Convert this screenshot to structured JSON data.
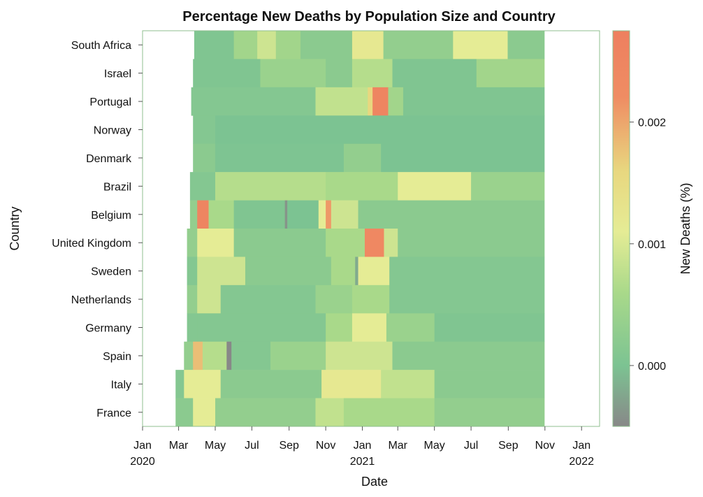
{
  "chart_data": {
    "type": "heatmap",
    "title": "Percentage New Deaths by Population Size and Country",
    "xlabel": "Date",
    "ylabel": "Country",
    "colorbar_label": "New Deaths (%)",
    "x_range": [
      "2020-01-01",
      "2022-01-31"
    ],
    "x_ticks": [
      {
        "date": "2020-01-01",
        "label": "Jan",
        "sublabel": "2020"
      },
      {
        "date": "2020-03-01",
        "label": "Mar",
        "sublabel": ""
      },
      {
        "date": "2020-05-01",
        "label": "May",
        "sublabel": ""
      },
      {
        "date": "2020-07-01",
        "label": "Jul",
        "sublabel": ""
      },
      {
        "date": "2020-09-01",
        "label": "Sep",
        "sublabel": ""
      },
      {
        "date": "2020-11-01",
        "label": "Nov",
        "sublabel": ""
      },
      {
        "date": "2021-01-01",
        "label": "Jan",
        "sublabel": "2021"
      },
      {
        "date": "2021-03-01",
        "label": "Mar",
        "sublabel": ""
      },
      {
        "date": "2021-05-01",
        "label": "May",
        "sublabel": ""
      },
      {
        "date": "2021-07-01",
        "label": "Jul",
        "sublabel": ""
      },
      {
        "date": "2021-09-01",
        "label": "Sep",
        "sublabel": ""
      },
      {
        "date": "2021-11-01",
        "label": "Nov",
        "sublabel": ""
      },
      {
        "date": "2022-01-01",
        "label": "Jan",
        "sublabel": "2022"
      }
    ],
    "color_range": [
      -0.0005,
      0.00275
    ],
    "color_ticks": [
      0.0,
      0.001,
      0.002
    ],
    "color_tick_labels": [
      "0.000",
      "0.001",
      "0.002"
    ],
    "colorscale": [
      [
        -0.0005,
        "#888888"
      ],
      [
        0.0,
        "#7cc392"
      ],
      [
        0.0006,
        "#a9d98a"
      ],
      [
        0.0011,
        "#e5ec95"
      ],
      [
        0.0016,
        "#e8d77f"
      ],
      [
        0.0022,
        "#ef8d63"
      ],
      [
        0.00275,
        "#ee7f5f"
      ]
    ],
    "countries": [
      "South Africa",
      "Israel",
      "Portugal",
      "Norway",
      "Denmark",
      "Brazil",
      "Belgium",
      "United Kingdom",
      "Sweden",
      "Netherlands",
      "Germany",
      "Spain",
      "Italy",
      "France"
    ],
    "rows": [
      {
        "country": "South Africa",
        "segments": [
          {
            "start": "2020-03-27",
            "end": "2020-06-01",
            "value": 5e-05
          },
          {
            "start": "2020-06-01",
            "end": "2020-07-10",
            "value": 0.0005
          },
          {
            "start": "2020-07-10",
            "end": "2020-08-10",
            "value": 0.0009
          },
          {
            "start": "2020-08-10",
            "end": "2020-09-20",
            "value": 0.0005
          },
          {
            "start": "2020-09-20",
            "end": "2020-12-15",
            "value": 0.0002
          },
          {
            "start": "2020-12-15",
            "end": "2021-02-05",
            "value": 0.0012
          },
          {
            "start": "2021-02-05",
            "end": "2021-06-01",
            "value": 0.0003
          },
          {
            "start": "2021-06-01",
            "end": "2021-08-31",
            "value": 0.0011
          },
          {
            "start": "2021-08-31",
            "end": "2021-10-31",
            "value": 0.0002
          }
        ]
      },
      {
        "country": "Israel",
        "segments": [
          {
            "start": "2020-03-25",
            "end": "2020-07-15",
            "value": 5e-05
          },
          {
            "start": "2020-07-15",
            "end": "2020-11-01",
            "value": 0.0004
          },
          {
            "start": "2020-11-01",
            "end": "2020-12-15",
            "value": 0.0002
          },
          {
            "start": "2020-12-15",
            "end": "2021-02-20",
            "value": 0.0007
          },
          {
            "start": "2021-02-20",
            "end": "2021-07-10",
            "value": 5e-05
          },
          {
            "start": "2021-07-10",
            "end": "2021-10-31",
            "value": 0.0005
          }
        ]
      },
      {
        "country": "Portugal",
        "segments": [
          {
            "start": "2020-03-22",
            "end": "2020-10-15",
            "value": 0.0001
          },
          {
            "start": "2020-10-15",
            "end": "2021-01-10",
            "value": 0.0008
          },
          {
            "start": "2021-01-10",
            "end": "2021-01-18",
            "value": 0.0016
          },
          {
            "start": "2021-01-18",
            "end": "2021-02-13",
            "value": 0.0025
          },
          {
            "start": "2021-02-13",
            "end": "2021-03-10",
            "value": 0.0005
          },
          {
            "start": "2021-03-10",
            "end": "2021-10-31",
            "value": 5e-05
          }
        ]
      },
      {
        "country": "Norway",
        "segments": [
          {
            "start": "2020-03-25",
            "end": "2020-05-01",
            "value": 0.0001
          },
          {
            "start": "2020-05-01",
            "end": "2021-10-31",
            "value": 0.0
          }
        ]
      },
      {
        "country": "Denmark",
        "segments": [
          {
            "start": "2020-03-25",
            "end": "2020-05-01",
            "value": 0.0002
          },
          {
            "start": "2020-05-01",
            "end": "2020-12-01",
            "value": 2e-05
          },
          {
            "start": "2020-12-01",
            "end": "2021-02-01",
            "value": 0.0003
          },
          {
            "start": "2021-02-01",
            "end": "2021-10-31",
            "value": 0.0
          }
        ]
      },
      {
        "country": "Brazil",
        "segments": [
          {
            "start": "2020-03-20",
            "end": "2020-05-01",
            "value": 0.0001
          },
          {
            "start": "2020-05-01",
            "end": "2020-11-01",
            "value": 0.0007
          },
          {
            "start": "2020-11-01",
            "end": "2021-03-01",
            "value": 0.0006
          },
          {
            "start": "2021-03-01",
            "end": "2021-07-01",
            "value": 0.0011
          },
          {
            "start": "2021-07-01",
            "end": "2021-10-31",
            "value": 0.0004
          }
        ]
      },
      {
        "country": "Belgium",
        "segments": [
          {
            "start": "2020-03-20",
            "end": "2020-04-01",
            "value": 0.0003
          },
          {
            "start": "2020-04-01",
            "end": "2020-04-20",
            "value": 0.0025
          },
          {
            "start": "2020-04-20",
            "end": "2020-06-01",
            "value": 0.0006
          },
          {
            "start": "2020-06-01",
            "end": "2020-08-25",
            "value": 5e-05
          },
          {
            "start": "2020-08-25",
            "end": "2020-08-29",
            "value": -0.0004
          },
          {
            "start": "2020-08-29",
            "end": "2020-10-20",
            "value": 0.0
          },
          {
            "start": "2020-10-20",
            "end": "2020-11-01",
            "value": 0.0011
          },
          {
            "start": "2020-11-01",
            "end": "2020-11-10",
            "value": 0.0021
          },
          {
            "start": "2020-11-10",
            "end": "2020-12-25",
            "value": 0.0009
          },
          {
            "start": "2020-12-25",
            "end": "2021-10-31",
            "value": 0.0002
          }
        ]
      },
      {
        "country": "United Kingdom",
        "segments": [
          {
            "start": "2020-03-15",
            "end": "2020-04-01",
            "value": 0.0003
          },
          {
            "start": "2020-04-01",
            "end": "2020-06-01",
            "value": 0.0011
          },
          {
            "start": "2020-06-01",
            "end": "2020-11-01",
            "value": 0.0002
          },
          {
            "start": "2020-11-01",
            "end": "2021-01-05",
            "value": 0.0006
          },
          {
            "start": "2021-01-05",
            "end": "2021-02-06",
            "value": 0.0024
          },
          {
            "start": "2021-02-06",
            "end": "2021-03-01",
            "value": 0.0009
          },
          {
            "start": "2021-03-01",
            "end": "2021-10-31",
            "value": 0.0002
          }
        ]
      },
      {
        "country": "Sweden",
        "segments": [
          {
            "start": "2020-03-15",
            "end": "2020-04-01",
            "value": 0.0001
          },
          {
            "start": "2020-04-01",
            "end": "2020-06-20",
            "value": 0.0009
          },
          {
            "start": "2020-06-20",
            "end": "2020-11-10",
            "value": 0.0002
          },
          {
            "start": "2020-11-10",
            "end": "2020-12-20",
            "value": 0.0006
          },
          {
            "start": "2020-12-20",
            "end": "2020-12-25",
            "value": -0.0002
          },
          {
            "start": "2020-12-25",
            "end": "2021-02-15",
            "value": 0.0011
          },
          {
            "start": "2021-02-15",
            "end": "2021-10-31",
            "value": 0.0001
          }
        ]
      },
      {
        "country": "Netherlands",
        "segments": [
          {
            "start": "2020-03-15",
            "end": "2020-04-01",
            "value": 0.0003
          },
          {
            "start": "2020-04-01",
            "end": "2020-05-10",
            "value": 0.0009
          },
          {
            "start": "2020-05-10",
            "end": "2020-10-15",
            "value": 0.0001
          },
          {
            "start": "2020-10-15",
            "end": "2020-12-15",
            "value": 0.0004
          },
          {
            "start": "2020-12-15",
            "end": "2021-02-15",
            "value": 0.0006
          },
          {
            "start": "2021-02-15",
            "end": "2021-10-31",
            "value": 0.0001
          }
        ]
      },
      {
        "country": "Germany",
        "segments": [
          {
            "start": "2020-03-15",
            "end": "2020-04-01",
            "value": 0.0001
          },
          {
            "start": "2020-04-01",
            "end": "2020-11-01",
            "value": 0.0001
          },
          {
            "start": "2020-11-01",
            "end": "2020-12-15",
            "value": 0.0006
          },
          {
            "start": "2020-12-15",
            "end": "2021-02-10",
            "value": 0.0011
          },
          {
            "start": "2021-02-10",
            "end": "2021-05-01",
            "value": 0.0004
          },
          {
            "start": "2021-05-01",
            "end": "2021-10-31",
            "value": 5e-05
          }
        ]
      },
      {
        "country": "Spain",
        "segments": [
          {
            "start": "2020-03-10",
            "end": "2020-03-25",
            "value": 0.0003
          },
          {
            "start": "2020-03-25",
            "end": "2020-04-10",
            "value": 0.0018
          },
          {
            "start": "2020-04-10",
            "end": "2020-05-20",
            "value": 0.0007
          },
          {
            "start": "2020-05-20",
            "end": "2020-05-28",
            "value": -0.0005
          },
          {
            "start": "2020-05-28",
            "end": "2020-08-01",
            "value": 0.0001
          },
          {
            "start": "2020-08-01",
            "end": "2020-11-01",
            "value": 0.0004
          },
          {
            "start": "2020-11-01",
            "end": "2021-02-20",
            "value": 0.0009
          },
          {
            "start": "2021-02-20",
            "end": "2021-10-31",
            "value": 0.0002
          }
        ]
      },
      {
        "country": "Italy",
        "segments": [
          {
            "start": "2020-02-25",
            "end": "2020-03-10",
            "value": 0.0001
          },
          {
            "start": "2020-03-10",
            "end": "2020-05-10",
            "value": 0.0011
          },
          {
            "start": "2020-05-10",
            "end": "2020-10-25",
            "value": 0.0002
          },
          {
            "start": "2020-10-25",
            "end": "2021-02-01",
            "value": 0.0012
          },
          {
            "start": "2021-02-01",
            "end": "2021-05-01",
            "value": 0.0008
          },
          {
            "start": "2021-05-01",
            "end": "2021-10-31",
            "value": 0.0002
          }
        ]
      },
      {
        "country": "France",
        "segments": [
          {
            "start": "2020-02-25",
            "end": "2020-03-25",
            "value": 0.0002
          },
          {
            "start": "2020-03-25",
            "end": "2020-05-01",
            "value": 0.0011
          },
          {
            "start": "2020-05-01",
            "end": "2020-10-15",
            "value": 0.0003
          },
          {
            "start": "2020-10-15",
            "end": "2020-12-01",
            "value": 0.0008
          },
          {
            "start": "2020-12-01",
            "end": "2021-05-01",
            "value": 0.0006
          },
          {
            "start": "2021-05-01",
            "end": "2021-10-31",
            "value": 0.0003
          }
        ]
      }
    ]
  }
}
